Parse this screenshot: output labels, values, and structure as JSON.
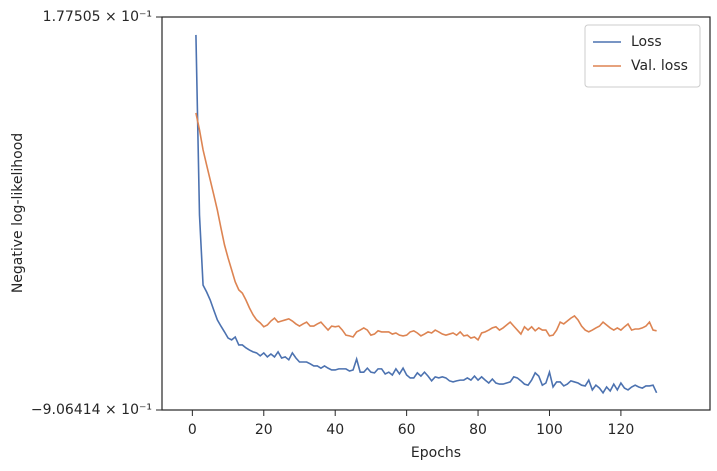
{
  "chart_data": {
    "type": "line",
    "xlabel": "Epochs",
    "ylabel": "Negative log-likelihood",
    "x": [
      1,
      2,
      3,
      4,
      5,
      6,
      7,
      8,
      9,
      10,
      11,
      12,
      13,
      14,
      15,
      16,
      17,
      18,
      19,
      20,
      21,
      22,
      23,
      24,
      25,
      26,
      27,
      28,
      29,
      30,
      31,
      32,
      33,
      34,
      35,
      36,
      37,
      38,
      39,
      40,
      41,
      42,
      43,
      44,
      45,
      46,
      47,
      48,
      49,
      50,
      51,
      52,
      53,
      54,
      55,
      56,
      57,
      58,
      59,
      60,
      61,
      62,
      63,
      64,
      65,
      66,
      67,
      68,
      69,
      70,
      71,
      72,
      73,
      74,
      75,
      76,
      77,
      78,
      79,
      80,
      81,
      82,
      83,
      84,
      85,
      86,
      87,
      88,
      89,
      90,
      91,
      92,
      93,
      94,
      95,
      96,
      97,
      98,
      99,
      100,
      101,
      102,
      103,
      104,
      105,
      106,
      107,
      108,
      109,
      110,
      111,
      112,
      113,
      114,
      115,
      116,
      117,
      118,
      119,
      120,
      121,
      122,
      123,
      124,
      125,
      126,
      127,
      128,
      129,
      130
    ],
    "series": [
      {
        "name": "Loss",
        "color": "#4c72b0",
        "values": [
          0.128,
          -0.369,
          -0.562,
          -0.581,
          -0.603,
          -0.631,
          -0.658,
          -0.675,
          -0.691,
          -0.708,
          -0.713,
          -0.705,
          -0.727,
          -0.727,
          -0.735,
          -0.741,
          -0.746,
          -0.749,
          -0.757,
          -0.749,
          -0.76,
          -0.752,
          -0.76,
          -0.746,
          -0.763,
          -0.76,
          -0.768,
          -0.749,
          -0.763,
          -0.774,
          -0.774,
          -0.774,
          -0.779,
          -0.785,
          -0.785,
          -0.791,
          -0.785,
          -0.791,
          -0.796,
          -0.796,
          -0.793,
          -0.793,
          -0.793,
          -0.799,
          -0.796,
          -0.766,
          -0.802,
          -0.802,
          -0.791,
          -0.802,
          -0.804,
          -0.793,
          -0.793,
          -0.807,
          -0.802,
          -0.81,
          -0.793,
          -0.807,
          -0.791,
          -0.81,
          -0.818,
          -0.818,
          -0.804,
          -0.813,
          -0.802,
          -0.813,
          -0.826,
          -0.815,
          -0.818,
          -0.815,
          -0.818,
          -0.826,
          -0.829,
          -0.826,
          -0.824,
          -0.824,
          -0.818,
          -0.824,
          -0.813,
          -0.824,
          -0.815,
          -0.824,
          -0.832,
          -0.821,
          -0.832,
          -0.835,
          -0.835,
          -0.832,
          -0.829,
          -0.815,
          -0.818,
          -0.826,
          -0.835,
          -0.838,
          -0.824,
          -0.804,
          -0.813,
          -0.838,
          -0.832,
          -0.802,
          -0.843,
          -0.829,
          -0.829,
          -0.84,
          -0.835,
          -0.826,
          -0.829,
          -0.832,
          -0.838,
          -0.84,
          -0.824,
          -0.851,
          -0.838,
          -0.846,
          -0.859,
          -0.843,
          -0.854,
          -0.835,
          -0.851,
          -0.832,
          -0.846,
          -0.851,
          -0.843,
          -0.838,
          -0.843,
          -0.846,
          -0.84,
          -0.84,
          -0.838,
          -0.859
        ]
      },
      {
        "name": "Val. loss",
        "color": "#dd8452",
        "values": [
          -0.087,
          -0.134,
          -0.189,
          -0.231,
          -0.272,
          -0.313,
          -0.355,
          -0.404,
          -0.451,
          -0.487,
          -0.52,
          -0.553,
          -0.575,
          -0.584,
          -0.603,
          -0.625,
          -0.644,
          -0.658,
          -0.666,
          -0.677,
          -0.672,
          -0.661,
          -0.653,
          -0.664,
          -0.661,
          -0.658,
          -0.655,
          -0.661,
          -0.669,
          -0.675,
          -0.669,
          -0.664,
          -0.675,
          -0.675,
          -0.669,
          -0.664,
          -0.675,
          -0.686,
          -0.675,
          -0.677,
          -0.675,
          -0.686,
          -0.7,
          -0.702,
          -0.705,
          -0.691,
          -0.686,
          -0.68,
          -0.686,
          -0.7,
          -0.697,
          -0.688,
          -0.691,
          -0.691,
          -0.691,
          -0.697,
          -0.694,
          -0.7,
          -0.702,
          -0.7,
          -0.691,
          -0.688,
          -0.694,
          -0.702,
          -0.697,
          -0.691,
          -0.694,
          -0.686,
          -0.691,
          -0.697,
          -0.7,
          -0.697,
          -0.694,
          -0.7,
          -0.691,
          -0.702,
          -0.7,
          -0.708,
          -0.705,
          -0.713,
          -0.694,
          -0.691,
          -0.686,
          -0.68,
          -0.677,
          -0.686,
          -0.68,
          -0.672,
          -0.664,
          -0.675,
          -0.686,
          -0.697,
          -0.677,
          -0.686,
          -0.677,
          -0.688,
          -0.68,
          -0.686,
          -0.686,
          -0.702,
          -0.7,
          -0.686,
          -0.664,
          -0.669,
          -0.661,
          -0.653,
          -0.647,
          -0.658,
          -0.675,
          -0.686,
          -0.691,
          -0.686,
          -0.68,
          -0.675,
          -0.664,
          -0.672,
          -0.68,
          -0.686,
          -0.68,
          -0.686,
          -0.677,
          -0.669,
          -0.686,
          -0.683,
          -0.683,
          -0.68,
          -0.675,
          -0.664,
          -0.686,
          -0.688
        ]
      }
    ],
    "xlim": [
      -8.5,
      144.95
    ],
    "xticks": [
      0,
      20,
      40,
      60,
      80,
      100,
      120
    ],
    "ylim": [
      -0.906414,
      0.177505
    ],
    "yticks": [
      {
        "value": -0.906414,
        "label": "−9.06414 × 10⁻¹"
      },
      {
        "value": 0.177505,
        "label": "1.77505 × 10⁻¹"
      }
    ],
    "legend": "upper right",
    "grid": false
  }
}
